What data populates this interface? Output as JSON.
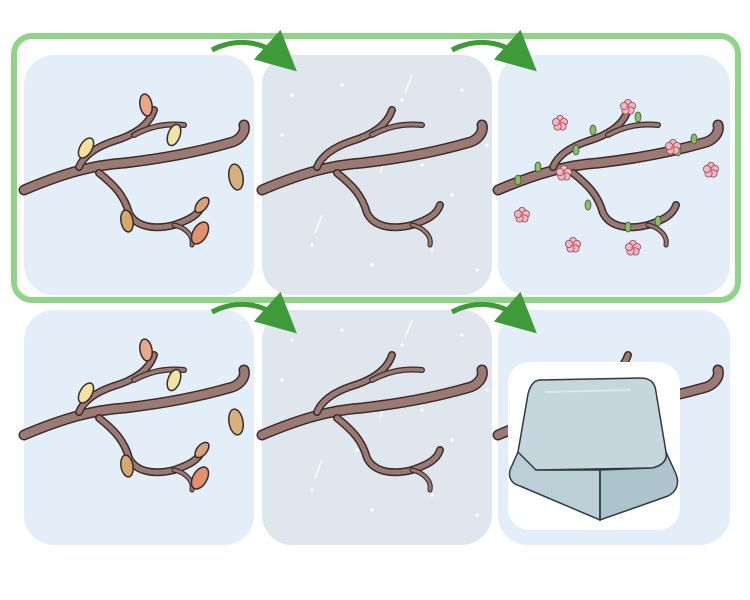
{
  "illustration": {
    "rows": [
      {
        "highlighted": true,
        "panels": [
          {
            "season": "autumn",
            "icon": "leafy-branch-icon"
          },
          {
            "season": "winter",
            "icon": "bare-branch-snow-icon"
          },
          {
            "season": "spring",
            "icon": "blossom-branch-icon"
          }
        ]
      },
      {
        "highlighted": false,
        "panels": [
          {
            "season": "autumn",
            "icon": "leafy-branch-icon"
          },
          {
            "season": "winter",
            "icon": "bare-branch-snow-icon"
          },
          {
            "season": "covered",
            "icon": "ice-block-icon"
          }
        ]
      }
    ],
    "colors": {
      "highlight_frame": "#8fd488",
      "arrow": "#3f9a3a",
      "branch": "#9b7a74",
      "branch_outline": "#3a2a28",
      "panel_light": "#e4eef9",
      "panel_winter": "#dfe6ee",
      "blossom": "#f4b6c2",
      "block": "#bfd1d8"
    }
  }
}
